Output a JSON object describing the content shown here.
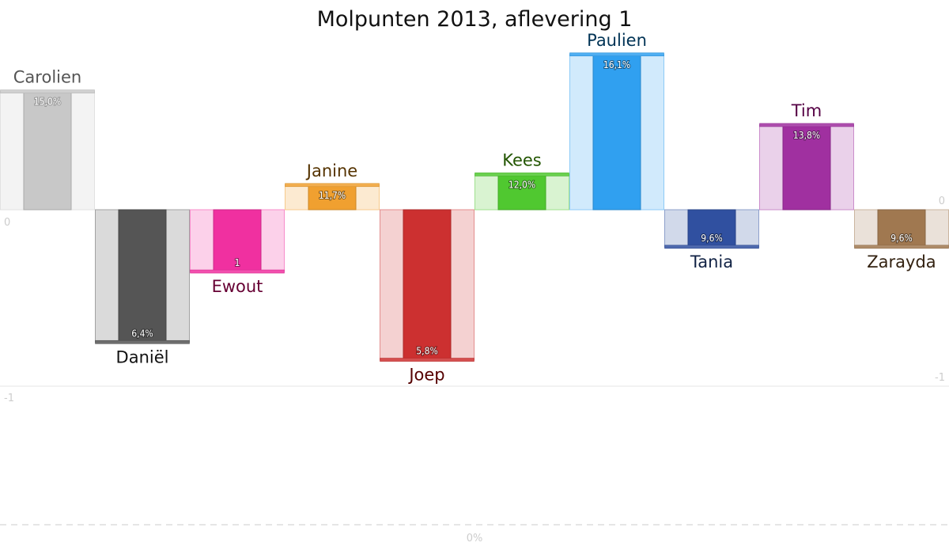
{
  "chart_data": {
    "type": "bar",
    "title": "Molpunten 2013, aflevering 1",
    "ylim": [
      -1.75,
      1.0
    ],
    "y_ticks_left": [
      "0",
      "-1"
    ],
    "y_ticks_right": [
      "0",
      "-1"
    ],
    "bottom_tick": "0%",
    "grid": true,
    "categories": [
      "Carolien",
      "Daniël",
      "Ewout",
      "Janine",
      "Joep",
      "Kees",
      "Paulien",
      "Tania",
      "Tim",
      "Zarayda"
    ],
    "values": [
      0.67,
      -0.75,
      -0.35,
      0.14,
      -0.85,
      0.2,
      0.88,
      -0.21,
      0.48,
      -0.21
    ],
    "percent_labels": [
      "15,0%",
      "6,4%",
      "1",
      "11,7%",
      "5,8%",
      "12,0%",
      "16,1%",
      "9,6%",
      "13,8%",
      "9,6%"
    ],
    "colors": [
      "#c8c8c8",
      "#555555",
      "#f030a0",
      "#f0a030",
      "#cc3030",
      "#50c830",
      "#30a0f0",
      "#3050a0",
      "#a030a0",
      "#a07850"
    ],
    "label_colors": [
      "#555555",
      "#111111",
      "#660033",
      "#553300",
      "#550000",
      "#225500",
      "#003355",
      "#112244",
      "#550044",
      "#332211"
    ]
  }
}
